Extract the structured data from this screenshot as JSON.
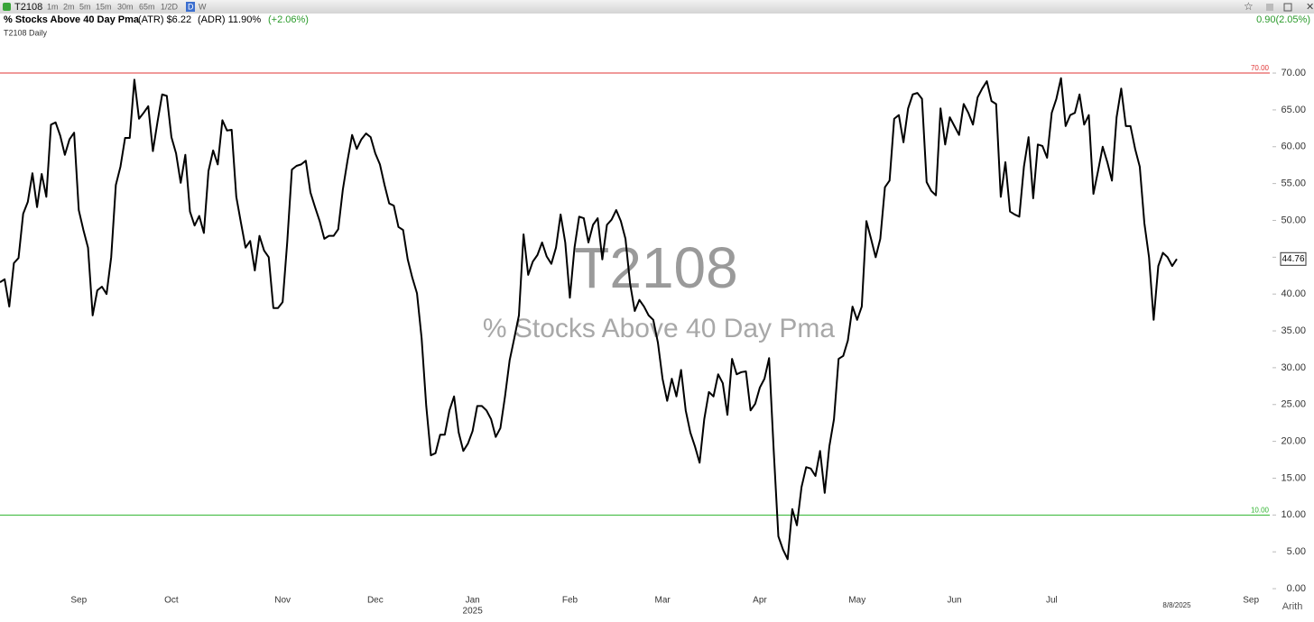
{
  "header": {
    "symbol": "T2108",
    "intervals": [
      "1m",
      "2m",
      "5m",
      "15m",
      "30m",
      "65m",
      "1/2D",
      "D",
      "W"
    ],
    "active_interval": "D",
    "name": "% Stocks Above 40 Day Pma",
    "atr": "(ATR) $6.22",
    "adr": "(ADR) 11.90%",
    "change_pct": "(+2.06%)",
    "right_change": "0.90(2.05%)",
    "chart_name": "T2108 Daily",
    "scale_mode": "Arith"
  },
  "chart_data": {
    "type": "line",
    "watermark_title": "T2108",
    "watermark_subtitle": "% Stocks Above 40 Day Pma",
    "year_label": "2025",
    "color": "#000000",
    "ylim": [
      -1,
      75
    ],
    "yticks": [
      {
        "value": 0,
        "label": "0.00"
      },
      {
        "value": 5,
        "label": "5.00"
      },
      {
        "value": 10,
        "label": "10.00"
      },
      {
        "value": 15,
        "label": "15.00"
      },
      {
        "value": 20,
        "label": "20.00"
      },
      {
        "value": 25,
        "label": "25.00"
      },
      {
        "value": 30,
        "label": "30.00"
      },
      {
        "value": 35,
        "label": "35.00"
      },
      {
        "value": 40,
        "label": "40.00"
      },
      {
        "value": 45,
        "label": "45.00"
      },
      {
        "value": 50,
        "label": "50.00"
      },
      {
        "value": 55,
        "label": "55.00"
      },
      {
        "value": 60,
        "label": "60.00"
      },
      {
        "value": 65,
        "label": "65.00"
      },
      {
        "value": 70,
        "label": "70.00"
      }
    ],
    "hlines": [
      {
        "value": 70,
        "label": "70.00",
        "color": "#e03434"
      },
      {
        "value": 10,
        "label": "10.00",
        "color": "#2fb42f"
      }
    ],
    "categories": [
      null,
      null,
      null,
      null,
      null,
      null,
      null,
      null,
      null,
      null,
      null,
      null,
      null,
      null,
      null,
      null,
      null,
      "Sep",
      null,
      null,
      null,
      null,
      null,
      null,
      null,
      null,
      null,
      null,
      null,
      null,
      null,
      null,
      null,
      null,
      null,
      null,
      null,
      "Oct",
      null,
      null,
      null,
      null,
      null,
      null,
      null,
      null,
      null,
      null,
      null,
      null,
      null,
      null,
      null,
      null,
      null,
      null,
      null,
      null,
      null,
      null,
      null,
      "Nov",
      null,
      null,
      null,
      null,
      null,
      null,
      null,
      null,
      null,
      null,
      null,
      null,
      null,
      null,
      null,
      null,
      null,
      null,
      null,
      "Dec",
      null,
      null,
      null,
      null,
      null,
      null,
      null,
      null,
      null,
      null,
      null,
      null,
      null,
      null,
      null,
      null,
      null,
      null,
      null,
      null,
      "Jan",
      null,
      null,
      null,
      null,
      null,
      null,
      null,
      null,
      null,
      null,
      null,
      null,
      null,
      null,
      null,
      null,
      null,
      null,
      null,
      null,
      "Feb",
      null,
      null,
      null,
      null,
      null,
      null,
      null,
      null,
      null,
      null,
      null,
      null,
      null,
      null,
      null,
      null,
      null,
      null,
      null,
      "Mar",
      null,
      null,
      null,
      null,
      null,
      null,
      null,
      null,
      null,
      null,
      null,
      null,
      null,
      null,
      null,
      null,
      null,
      null,
      null,
      null,
      "Apr",
      null,
      null,
      null,
      null,
      null,
      null,
      null,
      null,
      null,
      null,
      null,
      null,
      null,
      null,
      null,
      null,
      null,
      null,
      null,
      null,
      "May",
      null,
      null,
      null,
      null,
      null,
      null,
      null,
      null,
      null,
      null,
      null,
      null,
      null,
      null,
      null,
      null,
      null,
      null,
      null,
      null,
      "Jun",
      null,
      null,
      null,
      null,
      null,
      null,
      null,
      null,
      null,
      null,
      null,
      null,
      null,
      null,
      null,
      null,
      null,
      null,
      null,
      null,
      "Jul",
      null,
      null,
      null,
      null,
      null,
      null,
      null,
      null,
      null,
      null,
      null,
      null,
      null,
      null,
      null,
      null,
      null,
      null,
      null,
      null,
      null,
      null,
      null,
      null,
      null,
      null,
      "8/8/2025",
      null,
      null,
      null,
      null,
      null,
      null,
      null,
      null,
      null,
      null,
      null,
      null,
      null,
      null,
      null,
      "Sep"
    ],
    "values": [
      41.6,
      42,
      38.3,
      44.2,
      44.9,
      50.9,
      52.5,
      56.4,
      51.8,
      56.3,
      53.2,
      63,
      63.3,
      61.5,
      58.9,
      61,
      61.9,
      51.4,
      48.7,
      46.3,
      37.1,
      40.5,
      41,
      40,
      45,
      54.8,
      57.3,
      61.2,
      61.2,
      69.1,
      63.8,
      64.6,
      65.5,
      59.4,
      63.4,
      67.1,
      66.9,
      61.3,
      59.1,
      55.1,
      58.9,
      51.2,
      49.3,
      50.6,
      48.3,
      56.7,
      59.5,
      57.6,
      63.6,
      62.2,
      62.3,
      53.2,
      49.7,
      46.3,
      47.2,
      43.2,
      47.9,
      45.9,
      45,
      38.1,
      38.1,
      38.9,
      47.1,
      56.9,
      57.4,
      57.6,
      58.1,
      53.8,
      51.8,
      49.9,
      47.5,
      47.9,
      47.9,
      48.8,
      54.2,
      58.1,
      61.6,
      59.7,
      61,
      61.8,
      61.3,
      59.1,
      57.6,
      54.8,
      52.3,
      52,
      49.1,
      48.7,
      44.7,
      42.2,
      40.1,
      34,
      24.8,
      18.1,
      18.4,
      20.9,
      20.9,
      24.2,
      26.1,
      21.2,
      18.7,
      19.7,
      21.4,
      24.8,
      24.8,
      24.2,
      23,
      20.6,
      21.8,
      26.1,
      31,
      34,
      37.1,
      48.1,
      42.6,
      44.4,
      45.3,
      47,
      45.1,
      44.1,
      46.3,
      50.8,
      47,
      39.5,
      46.3,
      50.5,
      50.3,
      47,
      49.4,
      50.3,
      44.7,
      49.4,
      50.1,
      51.4,
      49.9,
      47.5,
      41.4,
      37.7,
      39.2,
      38.3,
      37.1,
      36.5,
      33.4,
      28.5,
      25.5,
      28.5,
      26.1,
      29.7,
      24.2,
      21.2,
      19.3,
      17.1,
      23,
      26.7,
      26.1,
      29.1,
      27.9,
      23.6,
      31.2,
      29.1,
      29.4,
      29.5,
      24.2,
      25.1,
      27.3,
      28.5,
      31.3,
      18.7,
      7.1,
      5.3,
      4,
      10.8,
      8.6,
      13.8,
      16.5,
      16.3,
      15.3,
      18.7,
      13,
      19.3,
      23,
      31.2,
      31.6,
      33.7,
      38.3,
      36.5,
      38.3,
      49.9,
      47.5,
      45,
      47.5,
      54.5,
      55.4,
      63.8,
      64.3,
      60.6,
      65.2,
      67.1,
      67.3,
      66.5,
      55.2,
      54,
      53.4,
      65.2,
      60.3,
      64,
      62.8,
      61.6,
      65.8,
      64.6,
      63,
      66.7,
      67.9,
      68.9,
      66.2,
      65.8,
      53.2,
      57.9,
      51.2,
      50.8,
      50.5,
      57.3,
      61.3,
      53,
      60.3,
      60.1,
      58.5,
      64.6,
      66.5,
      69.3,
      62.8,
      64.3,
      64.6,
      67.1,
      63,
      64.3,
      53.6,
      56.7,
      60,
      57.9,
      55.4,
      64,
      67.9,
      62.8,
      62.8,
      59.7,
      57.3,
      49.6,
      45,
      36.5,
      43.8,
      45.6,
      45,
      43.8,
      44.76,
      null,
      null,
      null,
      null,
      null,
      null,
      null,
      null,
      null,
      null,
      null,
      null,
      null,
      null,
      null,
      null
    ]
  }
}
